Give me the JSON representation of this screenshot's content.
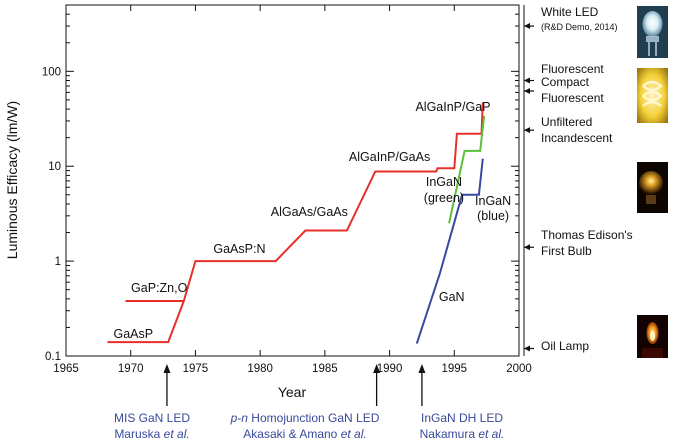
{
  "chart_data": {
    "type": "line",
    "xlabel": "Year",
    "ylabel": "Luminous Efficacy (lm/W)",
    "xlim": [
      1965,
      2000
    ],
    "ylim": [
      0.1,
      500
    ],
    "yscale": "log",
    "x_ticks": [
      1965,
      1970,
      1975,
      1980,
      1985,
      1990,
      1995,
      2000
    ],
    "y_ticks": [
      {
        "value": 0.1,
        "label": "0.1"
      },
      {
        "value": 1,
        "label": "1"
      },
      {
        "value": 10,
        "label": "10"
      },
      {
        "value": 100,
        "label": "100"
      }
    ],
    "series": [
      {
        "color": "#e8302a",
        "points": [
          [
            1968.2,
            0.14
          ],
          [
            1972.9,
            0.14
          ],
          [
            1974.1,
            0.38
          ],
          [
            1975.0,
            1.0
          ],
          [
            1981.2,
            1.0
          ],
          [
            1983.5,
            2.1
          ],
          [
            1986.7,
            2.1
          ],
          [
            1988.9,
            8.8
          ],
          [
            1993.6,
            8.8
          ],
          [
            1993.7,
            9.5
          ],
          [
            1995.0,
            9.5
          ],
          [
            1995.2,
            22.0
          ],
          [
            1997.1,
            22.0
          ],
          [
            1997.2,
            47.0
          ]
        ]
      },
      {
        "color": "#e8302a",
        "points": [
          [
            1969.6,
            0.38
          ],
          [
            1974.1,
            0.38
          ]
        ]
      },
      {
        "color": "#3a47a3",
        "points": [
          [
            1992.1,
            0.135
          ],
          [
            1993.9,
            0.75
          ],
          [
            1995.6,
            5.0
          ],
          [
            1996.9,
            5.0
          ],
          [
            1997.2,
            12.0
          ]
        ]
      },
      {
        "color": "#5cbf3a",
        "points": [
          [
            1994.6,
            2.5
          ],
          [
            1995.8,
            14.5
          ],
          [
            1997.0,
            14.5
          ],
          [
            1997.3,
            34.0
          ]
        ]
      }
    ],
    "annotations": [
      {
        "text": "GaAsP",
        "x": 1970.2,
        "y": 0.155
      },
      {
        "text": "GaP:Zn,O",
        "x": 1972.2,
        "y": 0.47
      },
      {
        "text": "GaAsP:N",
        "x": 1978.4,
        "y": 1.22
      },
      {
        "text": "AlGaAs/GaAs",
        "x": 1983.8,
        "y": 3.0
      },
      {
        "text": "AlGaInP/GaAs",
        "x": 1990.0,
        "y": 11.3
      },
      {
        "text": "AlGaInP/GaP",
        "x": 1994.9,
        "y": 38.0
      },
      {
        "text": "InGaN",
        "x": 1994.2,
        "y": 6.2
      },
      {
        "text": "(green)",
        "x": 1994.2,
        "y": 4.2
      },
      {
        "text": "InGaN",
        "x": 1998.0,
        "y": 3.9
      },
      {
        "text": "(blue)",
        "x": 1998.0,
        "y": 2.7
      },
      {
        "text": "GaN",
        "x": 1994.8,
        "y": 0.38
      }
    ],
    "reference_sources": [
      {
        "label": "White LED",
        "sublabel": "(R&D Demo, 2014)",
        "value": 300,
        "icon": "white-led-photo"
      },
      {
        "label": "Fluorescent",
        "sublabel": "",
        "value": 80,
        "icon": ""
      },
      {
        "label": "Compact",
        "sublabel": "Fluorescent",
        "value": 62,
        "icon": "compact-fluorescent-photo"
      },
      {
        "label": "Unfiltered",
        "sublabel": "Incandescent",
        "value": 24,
        "icon": "incandescent-bulb-photo"
      },
      {
        "label": "Thomas Edison's",
        "sublabel": "First Bulb",
        "value": 1.4,
        "icon": ""
      },
      {
        "label": "Oil Lamp",
        "sublabel": "",
        "value": 0.12,
        "icon": "oil-lamp-photo"
      }
    ],
    "milestones": [
      {
        "year": 1972.8,
        "line1_pre": "",
        "line1_italic": "",
        "line1_post": "MIS GaN LED",
        "line2_pre": "Maruska ",
        "line2_italic": "et al.",
        "line2_post": ""
      },
      {
        "year": 1989.0,
        "line1_pre": "",
        "line1_italic": "p-n",
        "line1_post": " Homojunction GaN LED",
        "line2_pre": "Akasaki & Amano ",
        "line2_italic": "et al.",
        "line2_post": ""
      },
      {
        "year": 1992.5,
        "line1_pre": "",
        "line1_italic": "",
        "line1_post": "InGaN DH LED",
        "line2_pre": "Nakamura ",
        "line2_italic": "et al.",
        "line2_post": ""
      }
    ]
  }
}
